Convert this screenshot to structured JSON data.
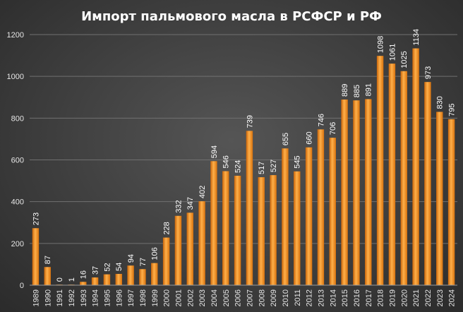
{
  "chart_data": {
    "type": "bar",
    "title": "Импорт пальмового масла в РСФСР и РФ",
    "xlabel": "",
    "ylabel": "",
    "categories": [
      "1989",
      "1990",
      "1991",
      "1992",
      "1993",
      "1994",
      "1995",
      "1996",
      "1997",
      "1998",
      "1999",
      "2000",
      "2001",
      "2002",
      "2003",
      "2004",
      "2005",
      "2006",
      "2007",
      "2008",
      "2009",
      "2010",
      "2011",
      "2012",
      "2013",
      "2014",
      "2015",
      "2016",
      "2017",
      "2018",
      "2019",
      "2020",
      "2021",
      "2022",
      "2023",
      "2024"
    ],
    "values": [
      273,
      87,
      0,
      1,
      16,
      37,
      52,
      54,
      94,
      77,
      106,
      228,
      332,
      347,
      402,
      594,
      546,
      524,
      739,
      517,
      527,
      655,
      545,
      660,
      746,
      706,
      889,
      885,
      891,
      1098,
      1061,
      1025,
      1134,
      973,
      830,
      795
    ],
    "ylim": [
      0,
      1200
    ],
    "yticks": [
      0,
      200,
      400,
      600,
      800,
      1000,
      1200
    ],
    "grid": true,
    "legend": "none",
    "bar_color": "#f28c1e"
  }
}
